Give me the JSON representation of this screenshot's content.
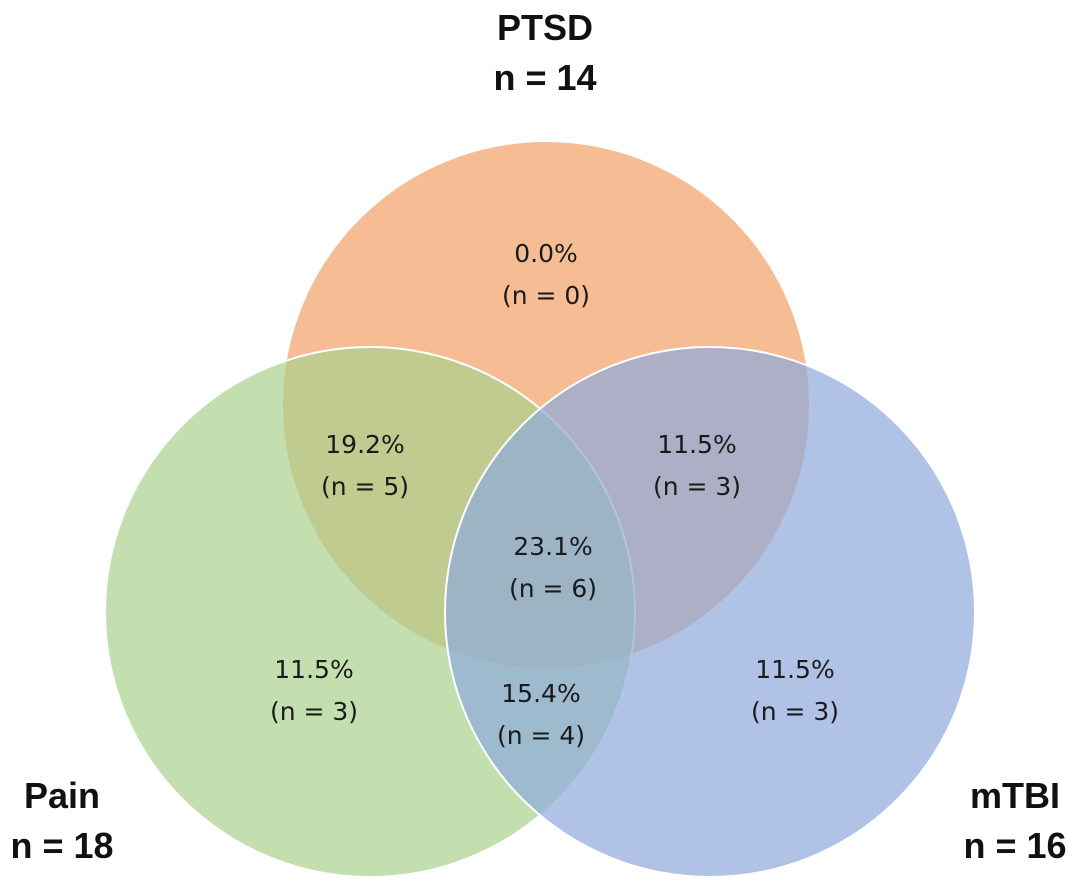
{
  "sets": [
    {
      "id": "ptsd",
      "name": "PTSD",
      "count": "n = 14",
      "color": "#f4b183"
    },
    {
      "id": "pain",
      "name": "Pain",
      "count": "n = 18",
      "color": "#a9d18e"
    },
    {
      "id": "mtbi",
      "name": "mTBI",
      "count": "n = 16",
      "color": "#8faadc"
    }
  ],
  "regions": [
    {
      "id": "ptsd-only",
      "sets": [
        "ptsd"
      ],
      "percent": "0.0%",
      "count": "(n = 0)"
    },
    {
      "id": "ptsd-pain",
      "sets": [
        "ptsd",
        "pain"
      ],
      "percent": "19.2%",
      "count": "(n = 5)"
    },
    {
      "id": "ptsd-mtbi",
      "sets": [
        "ptsd",
        "mtbi"
      ],
      "percent": "11.5%",
      "count": "(n = 3)"
    },
    {
      "id": "all-three",
      "sets": [
        "ptsd",
        "pain",
        "mtbi"
      ],
      "percent": "23.1%",
      "count": "(n = 6)"
    },
    {
      "id": "pain-only",
      "sets": [
        "pain"
      ],
      "percent": "11.5%",
      "count": "(n = 3)"
    },
    {
      "id": "pain-mtbi",
      "sets": [
        "pain",
        "mtbi"
      ],
      "percent": "15.4%",
      "count": "(n = 4)"
    },
    {
      "id": "mtbi-only",
      "sets": [
        "mtbi"
      ],
      "percent": "11.5%",
      "count": "(n = 3)"
    }
  ]
}
